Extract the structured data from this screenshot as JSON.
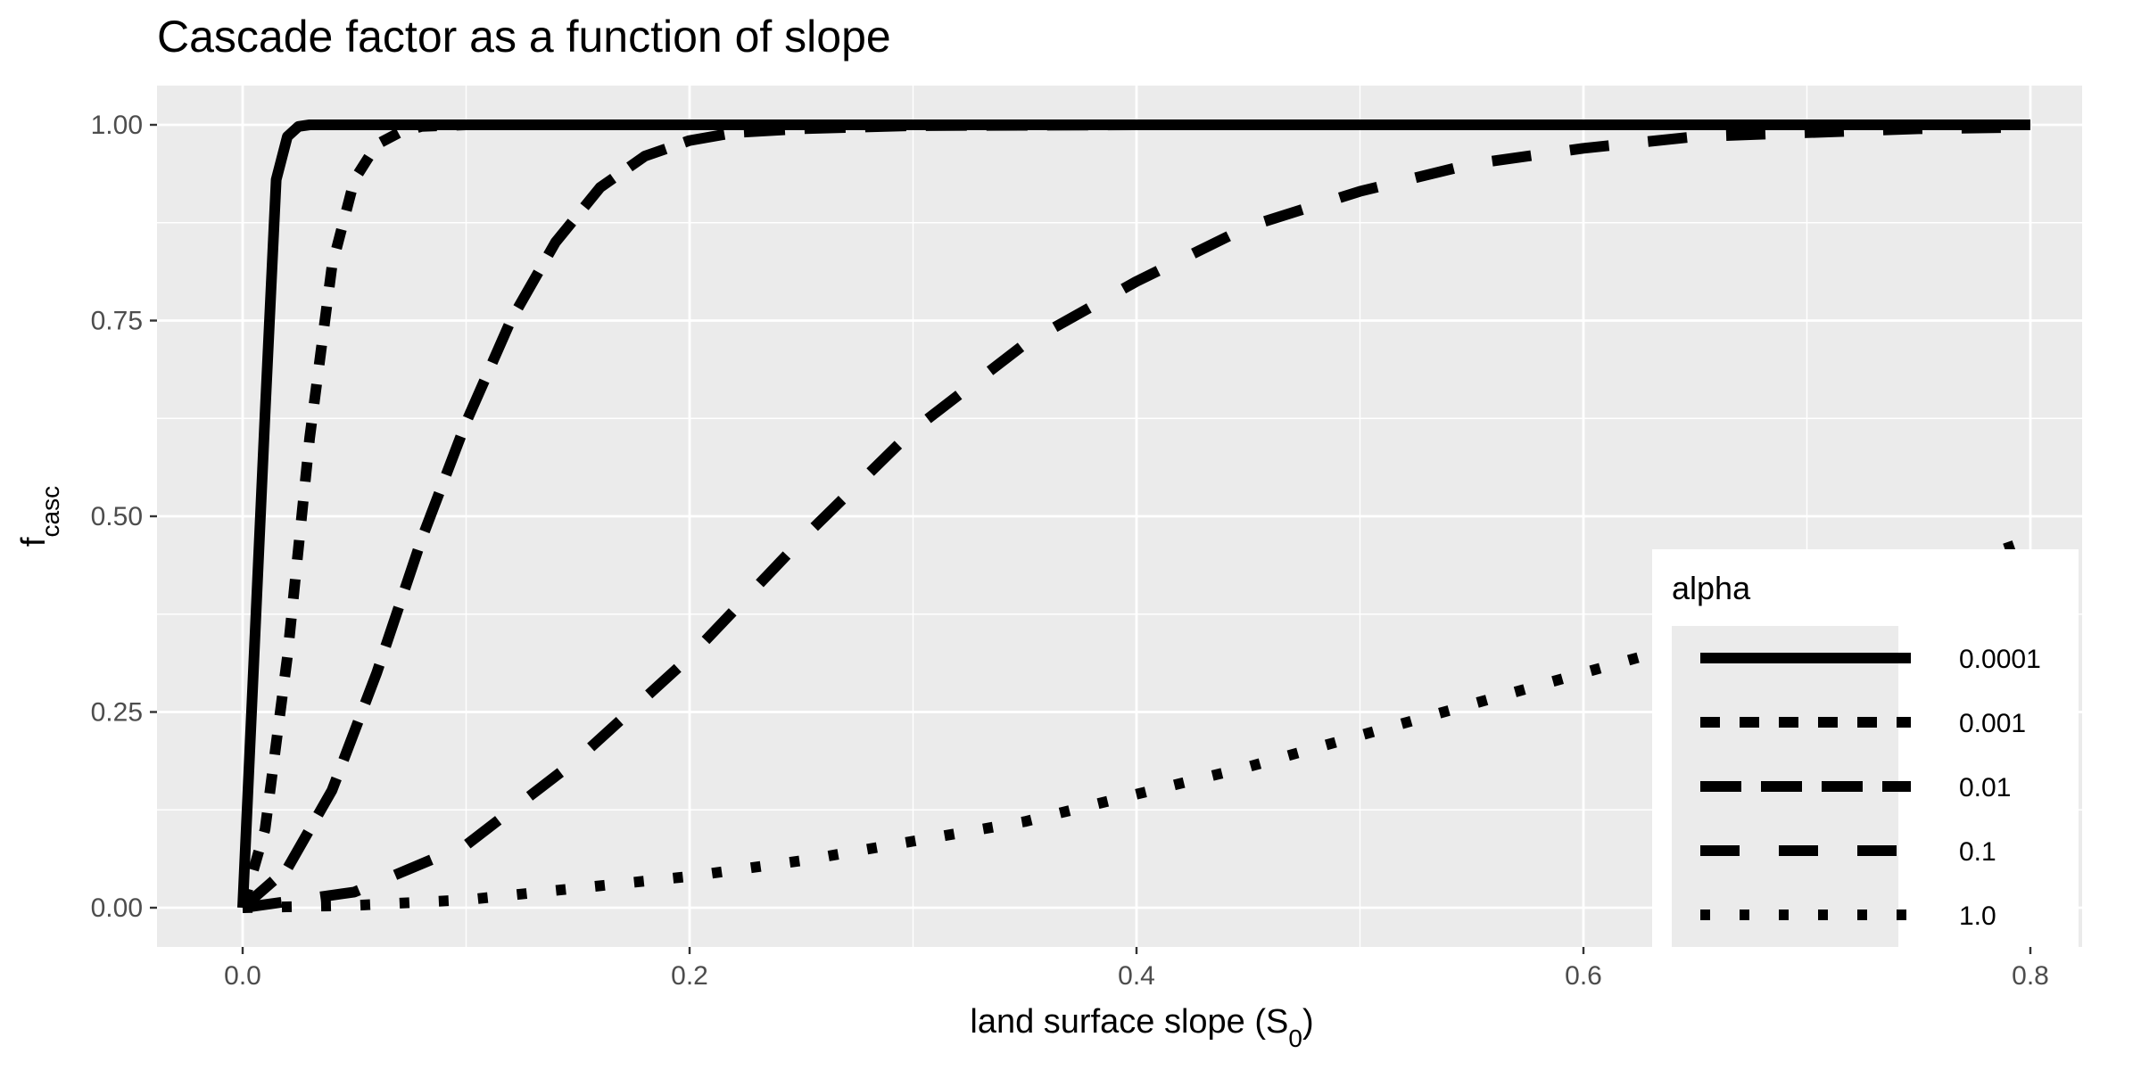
{
  "chart_data": {
    "type": "line",
    "title": "Cascade factor as a function of slope",
    "xlabel": {
      "main": "land surface slope (S",
      "sub": "0",
      "close": ")"
    },
    "ylabel": {
      "main": "f",
      "sub": "casc"
    },
    "xlim": [
      0,
      0.8
    ],
    "ylim": [
      0,
      1
    ],
    "x_ticks": [
      0,
      0.2,
      0.4,
      0.6,
      0.8
    ],
    "x_tick_labels": [
      "0.0",
      "0.2",
      "0.4",
      "0.6",
      "0.8"
    ],
    "y_ticks": [
      0,
      0.25,
      0.5,
      0.75,
      1
    ],
    "y_tick_labels": [
      "0.00",
      "0.25",
      "0.50",
      "0.75",
      "1.00"
    ],
    "grid": true,
    "background": "#ebebeb",
    "grid_color": "#ffffff",
    "line_color": "#000000",
    "legend": {
      "title": "alpha",
      "position": "bottom-right",
      "background": "#ffffff",
      "key_background": "#ebebeb"
    },
    "series": [
      {
        "name": "0.0001",
        "dash": "solid",
        "x": [
          0,
          0.01,
          0.015,
          0.02,
          0.025,
          0.03,
          0.05,
          0.1,
          0.2,
          0.4,
          0.6,
          0.8
        ],
        "y": [
          0,
          0.63,
          0.93,
          0.985,
          0.998,
          1.0,
          1.0,
          1.0,
          1.0,
          1.0,
          1.0,
          1.0
        ]
      },
      {
        "name": "0.001",
        "dash": "dashed",
        "x": [
          0,
          0.01,
          0.02,
          0.03,
          0.04,
          0.05,
          0.06,
          0.07,
          0.08,
          0.1,
          0.2,
          0.4,
          0.6,
          0.8
        ],
        "y": [
          0,
          0.1,
          0.32,
          0.6,
          0.82,
          0.93,
          0.975,
          0.99,
          0.998,
          1.0,
          1.0,
          1.0,
          1.0,
          1.0
        ]
      },
      {
        "name": "0.01",
        "dash": "long-dash",
        "x": [
          0,
          0.02,
          0.04,
          0.06,
          0.08,
          0.1,
          0.12,
          0.14,
          0.16,
          0.18,
          0.2,
          0.22,
          0.25,
          0.3,
          0.4,
          0.6,
          0.8
        ],
        "y": [
          0,
          0.05,
          0.15,
          0.3,
          0.47,
          0.62,
          0.75,
          0.85,
          0.92,
          0.96,
          0.98,
          0.99,
          0.995,
          0.999,
          1.0,
          1.0,
          1.0
        ]
      },
      {
        "name": "0.1",
        "dash": "two-dash",
        "x": [
          0,
          0.05,
          0.1,
          0.15,
          0.2,
          0.25,
          0.3,
          0.35,
          0.4,
          0.45,
          0.5,
          0.55,
          0.6,
          0.65,
          0.7,
          0.75,
          0.8
        ],
        "y": [
          0,
          0.02,
          0.08,
          0.19,
          0.32,
          0.47,
          0.61,
          0.72,
          0.8,
          0.87,
          0.915,
          0.95,
          0.97,
          0.985,
          0.99,
          0.995,
          0.997
        ]
      },
      {
        "name": "1.0",
        "dash": "dotted",
        "x": [
          0,
          0.05,
          0.1,
          0.15,
          0.2,
          0.25,
          0.3,
          0.35,
          0.4,
          0.45,
          0.5,
          0.55,
          0.6,
          0.65,
          0.7,
          0.75,
          0.8
        ],
        "y": [
          0,
          0.003,
          0.01,
          0.025,
          0.04,
          0.06,
          0.085,
          0.11,
          0.145,
          0.18,
          0.22,
          0.26,
          0.3,
          0.34,
          0.38,
          0.42,
          0.47
        ]
      }
    ]
  }
}
